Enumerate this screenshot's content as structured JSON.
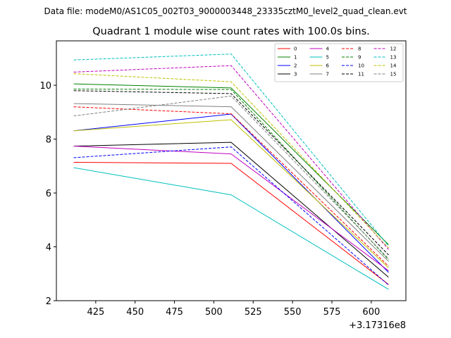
{
  "header": {
    "data_file": "Data file: modeM0/AS1C05_002T03_9000003448_23335cztM0_level2_quad_clean.evt"
  },
  "chart_data": {
    "type": "line",
    "title": "Quadrant 1 module wise count rates with 100.0s bins.",
    "xlabel": "",
    "ylabel": "",
    "x_offset_label": "+3.17316e8",
    "x": [
      411,
      511,
      611
    ],
    "xlim": [
      400,
      622
    ],
    "ylim": [
      2.0,
      11.65
    ],
    "xticks": [
      425,
      450,
      475,
      500,
      525,
      550,
      575,
      600
    ],
    "yticks": [
      2,
      4,
      6,
      8,
      10
    ],
    "grid": false,
    "legend_position": "top-right",
    "series": [
      {
        "name": "0",
        "color": "#ff0000",
        "dashed": false,
        "values": [
          7.14,
          7.1,
          2.6
        ]
      },
      {
        "name": "1",
        "color": "#008000",
        "dashed": false,
        "values": [
          10.05,
          9.9,
          4.08
        ]
      },
      {
        "name": "2",
        "color": "#0000ff",
        "dashed": false,
        "values": [
          8.31,
          8.93,
          3.05
        ]
      },
      {
        "name": "3",
        "color": "#000000",
        "dashed": false,
        "values": [
          7.74,
          7.88,
          2.87
        ]
      },
      {
        "name": "4",
        "color": "#bf00bf",
        "dashed": false,
        "values": [
          7.74,
          7.45,
          3.11
        ]
      },
      {
        "name": "5",
        "color": "#00bfbf",
        "dashed": false,
        "values": [
          6.94,
          5.93,
          2.42
        ]
      },
      {
        "name": "6",
        "color": "#bfbf00",
        "dashed": false,
        "values": [
          8.31,
          8.72,
          3.22
        ]
      },
      {
        "name": "7",
        "color": "#808080",
        "dashed": false,
        "values": [
          9.32,
          9.2,
          3.46
        ]
      },
      {
        "name": "8",
        "color": "#ff0000",
        "dashed": true,
        "values": [
          9.2,
          8.94,
          3.28
        ]
      },
      {
        "name": "9",
        "color": "#008000",
        "dashed": true,
        "values": [
          9.86,
          9.84,
          3.52
        ]
      },
      {
        "name": "10",
        "color": "#0000ff",
        "dashed": true,
        "values": [
          7.31,
          7.71,
          2.58
        ]
      },
      {
        "name": "11",
        "color": "#000000",
        "dashed": true,
        "values": [
          9.8,
          9.69,
          3.7
        ]
      },
      {
        "name": "12",
        "color": "#bf00bf",
        "dashed": true,
        "values": [
          10.49,
          10.73,
          3.9
        ]
      },
      {
        "name": "13",
        "color": "#00bfbf",
        "dashed": true,
        "values": [
          10.94,
          11.16,
          4.03
        ]
      },
      {
        "name": "14",
        "color": "#bfbf00",
        "dashed": true,
        "values": [
          10.43,
          10.13,
          3.96
        ]
      },
      {
        "name": "15",
        "color": "#808080",
        "dashed": true,
        "values": [
          8.86,
          9.6,
          3.56
        ]
      }
    ]
  }
}
